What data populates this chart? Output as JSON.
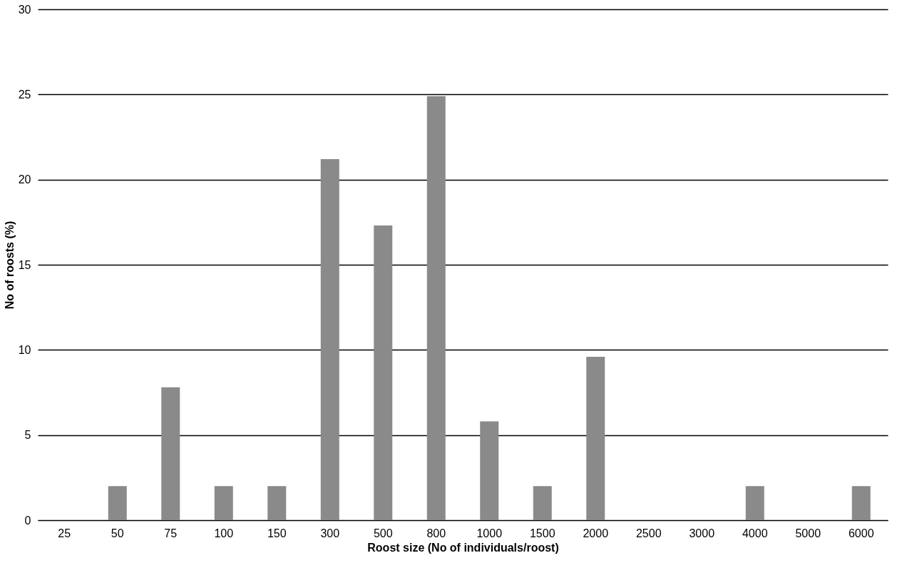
{
  "chart_data": {
    "type": "bar",
    "xlabel": "Roost size (No of individuals/roost)",
    "ylabel": "No of roosts (%)",
    "categories": [
      "25",
      "50",
      "75",
      "100",
      "150",
      "300",
      "500",
      "800",
      "1000",
      "1500",
      "2000",
      "2500",
      "3000",
      "4000",
      "5000",
      "6000"
    ],
    "values": [
      0,
      2,
      7.8,
      2,
      2,
      21.2,
      17.3,
      24.9,
      5.8,
      2,
      9.6,
      0,
      0,
      2,
      0,
      2
    ],
    "color": "#8a8a8a",
    "ylim": [
      0,
      30
    ],
    "yticks": [
      0,
      5,
      10,
      15,
      20,
      25,
      30
    ],
    "grid": "y"
  }
}
